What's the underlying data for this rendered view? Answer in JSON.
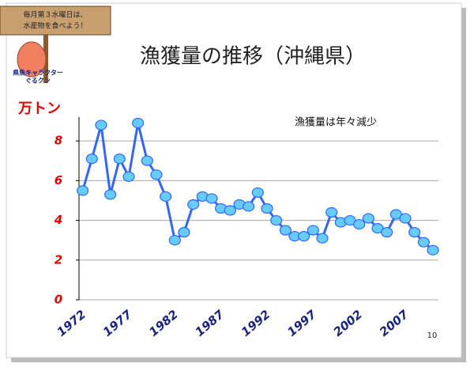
{
  "sign_text": [
    "毎月第３水曜日は、",
    "水産物を食べよう！"
  ],
  "character_label": [
    "県魚キャラクター",
    "ぐるクン"
  ],
  "page_number": "10",
  "chart_data": {
    "type": "line",
    "title": "漁獲量の推移（沖縄県）",
    "y_label": "万トン",
    "annotation": "漁獲量は年々減少",
    "x": [
      1972,
      1973,
      1974,
      1975,
      1976,
      1977,
      1978,
      1979,
      1980,
      1981,
      1982,
      1983,
      1984,
      1985,
      1986,
      1987,
      1988,
      1989,
      1990,
      1991,
      1992,
      1993,
      1994,
      1995,
      1996,
      1997,
      1998,
      1999,
      2000,
      2001,
      2002,
      2003,
      2004,
      2005,
      2006,
      2007,
      2008,
      2009,
      2010
    ],
    "series": [
      {
        "color": "#3366ff",
        "marker_color": "#66ccff",
        "values": [
          5.5,
          7.1,
          8.8,
          5.3,
          7.1,
          6.2,
          8.9,
          7.0,
          6.3,
          5.2,
          3.0,
          3.4,
          4.8,
          5.2,
          5.1,
          4.6,
          4.5,
          4.8,
          4.7,
          5.4,
          4.6,
          4.0,
          3.5,
          3.2,
          3.2,
          3.5,
          3.1,
          4.4,
          3.9,
          4.0,
          3.8,
          4.1,
          3.6,
          3.4,
          4.3,
          4.1,
          3.4,
          2.9,
          2.5
        ]
      }
    ],
    "xlim": [
      1971.6,
      2010.6
    ],
    "xticks": [
      1972,
      1977,
      1982,
      1987,
      1992,
      1997,
      2002,
      2007
    ],
    "ylim": [
      0,
      9.2
    ],
    "yticks": [
      0,
      2,
      4,
      6,
      8
    ],
    "grid": true
  }
}
